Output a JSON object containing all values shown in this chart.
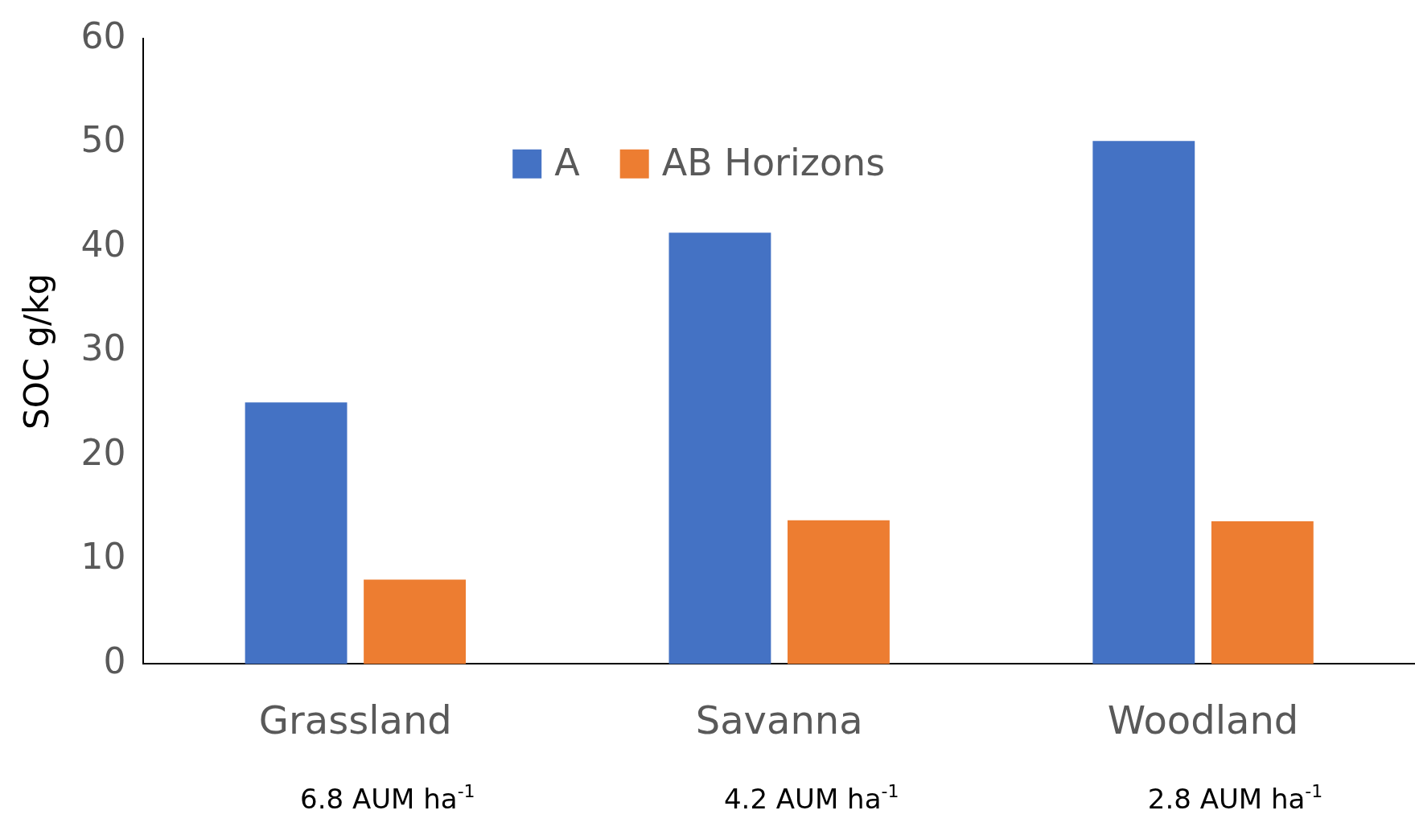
{
  "chart_data": {
    "type": "bar",
    "ylabel": "SOC g/kg",
    "categories": [
      "Grassland",
      "Savanna",
      "Woodland"
    ],
    "series": [
      {
        "name": "A",
        "color": "#4472c4",
        "values": [
          25.1,
          41.4,
          50.2
        ]
      },
      {
        "name": "AB Horizons",
        "color": "#ed7d31",
        "values": [
          8.1,
          13.8,
          13.7
        ]
      }
    ],
    "ylim": [
      0,
      60
    ],
    "yticks": [
      0,
      10,
      20,
      30,
      40,
      50,
      60
    ],
    "grid": false,
    "legend": "top",
    "annotations": [
      "6.8 AUM ha$^{-1}$",
      "4.2 AUM ha$^{-1}$",
      "2.8 AUM ha$^{-1}$"
    ]
  }
}
